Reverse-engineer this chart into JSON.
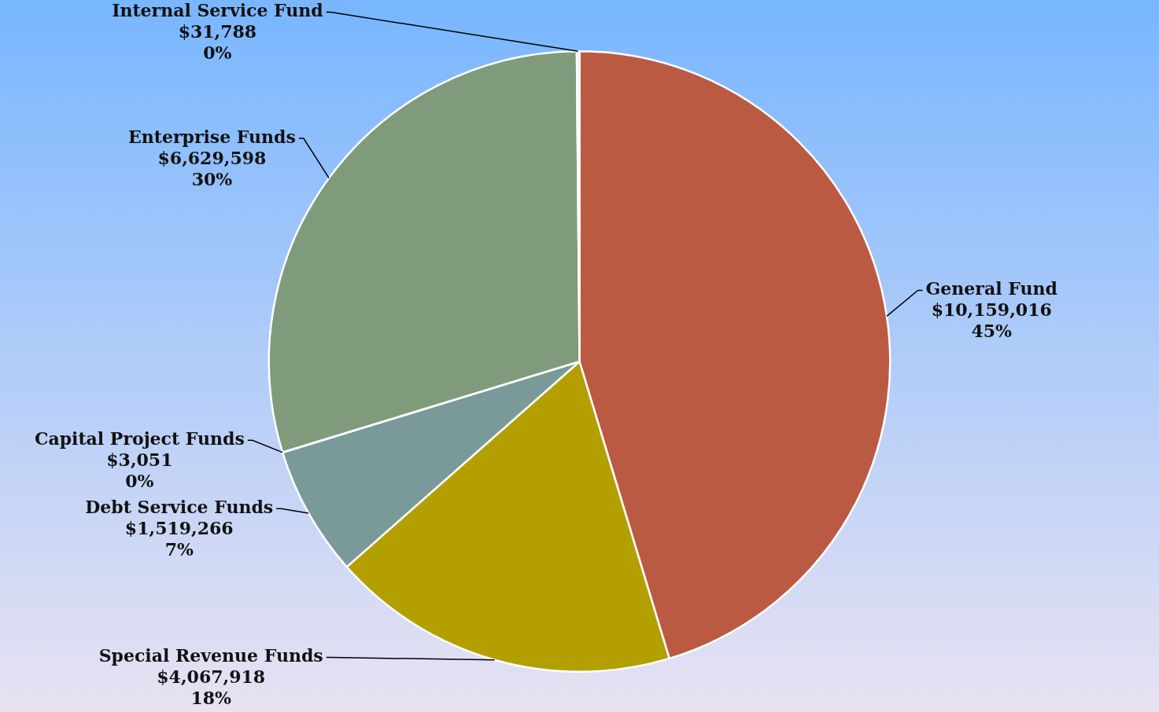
{
  "chart_data": {
    "type": "pie",
    "categories": [
      "General Fund",
      "Special Revenue Funds",
      "Debt Service Funds",
      "Capital Project Funds",
      "Enterprise Funds",
      "Internal Service Fund"
    ],
    "values": [
      10159016,
      4067918,
      1519266,
      3051,
      6629598,
      31788
    ],
    "colors": [
      "#bb5a42",
      "#b3a000",
      "#7a9a9a",
      "#8a9a9a",
      "#7f9b7b",
      "#dde6ee"
    ],
    "value_labels": [
      "$10,159,016\n45%",
      "$4,067,918\n18%",
      "$1,519,266\n7%",
      "$3,051\n0%",
      "$6,629,598\n30%",
      "$31,788\n0%"
    ]
  }
}
